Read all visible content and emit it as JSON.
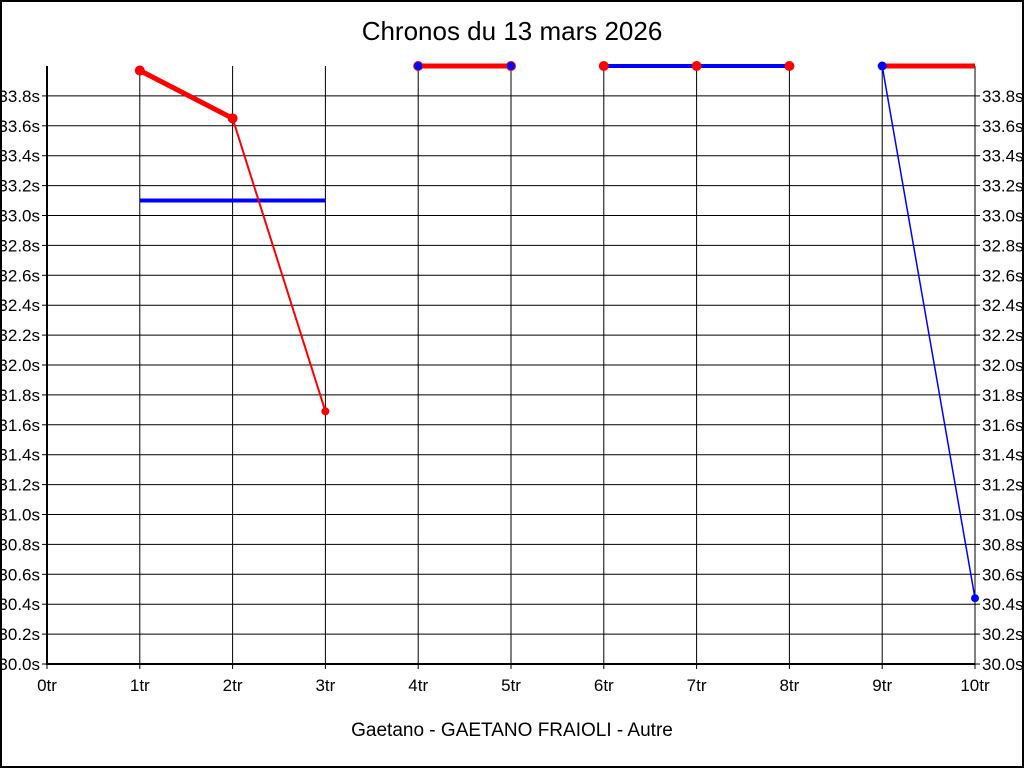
{
  "title": "Chronos du 13 mars 2026",
  "footer": "Gaetano - GAETANO FRAIOLI - Autre",
  "colors": {
    "red": "#ff0000",
    "blue": "#0000ff",
    "grid": "#000000",
    "axis": "#000000",
    "text": "#000000",
    "background": "#ffffff",
    "frame": "#000000"
  },
  "chart_data": {
    "type": "line",
    "title": "Chronos du 13 mars 2026",
    "footer": "Gaetano - GAETANO FRAIOLI - Autre",
    "xlim": [
      0,
      10
    ],
    "ylim": [
      30.0,
      34.0
    ],
    "grid": true,
    "legend": "none",
    "x_tick_values": [
      0,
      1,
      2,
      3,
      4,
      5,
      6,
      7,
      8,
      9,
      10
    ],
    "x_tick_labels": [
      "0tr",
      "1tr",
      "2tr",
      "3tr",
      "4tr",
      "5tr",
      "6tr",
      "7tr",
      "8tr",
      "9tr",
      "10tr"
    ],
    "y_tick_values": [
      33.8,
      33.6,
      33.4,
      33.2,
      33.0,
      32.8,
      32.6,
      32.4,
      32.2,
      32.0,
      31.8,
      31.6,
      31.4,
      31.2,
      31.0,
      30.8,
      30.6,
      30.4,
      30.2,
      30.0
    ],
    "y_tick_labels": [
      "33.8s",
      "33.6s",
      "33.4s",
      "33.2s",
      "33.0s",
      "32.8s",
      "32.6s",
      "32.4s",
      "32.2s",
      "32.0s",
      "31.8s",
      "31.6s",
      "31.4s",
      "31.2s",
      "31.0s",
      "30.8s",
      "30.6s",
      "30.4s",
      "30.2s",
      "30.0s"
    ],
    "y_tick_sides": "both",
    "series": [
      {
        "name": "blue-mean-laps1-3",
        "color": "#0000ff",
        "width": 4,
        "marker_r": 0,
        "points": [
          [
            1,
            33.1
          ],
          [
            3,
            33.1
          ]
        ]
      },
      {
        "name": "red-chrono-lap1-2",
        "color": "#ff0000",
        "width": 5,
        "marker_r": 5,
        "points": [
          [
            1,
            33.97
          ],
          [
            2,
            33.65
          ]
        ]
      },
      {
        "name": "red-chrono-lap2-3",
        "color": "#ff0000",
        "width": 2,
        "marker_r": 4,
        "points": [
          [
            2,
            33.65
          ],
          [
            3,
            31.69
          ]
        ]
      },
      {
        "name": "blue-line-laps4-5",
        "color": "#0000ff",
        "width": 3,
        "marker_r": 0,
        "points": [
          [
            4,
            34.0
          ],
          [
            5,
            34.0
          ]
        ]
      },
      {
        "name": "red-chrono-laps4-5",
        "color": "#ff0000",
        "width": 5,
        "marker_r": 5,
        "points": [
          [
            4,
            34.0
          ],
          [
            5,
            34.0
          ]
        ]
      },
      {
        "name": "blue-markers-laps4-5",
        "color": "#0000ff",
        "width": 0,
        "marker_r": 4,
        "points": [
          [
            4,
            34.0
          ],
          [
            5,
            34.0
          ]
        ]
      },
      {
        "name": "blue-line-laps6-8",
        "color": "#0000ff",
        "width": 4,
        "marker_r": 0,
        "points": [
          [
            6,
            34.0
          ],
          [
            7,
            34.0
          ],
          [
            8,
            34.0
          ]
        ]
      },
      {
        "name": "red-markers-laps6-8",
        "color": "#ff0000",
        "width": 0,
        "marker_r": 5,
        "points": [
          [
            6,
            34.0
          ],
          [
            7,
            34.0
          ],
          [
            8,
            34.0
          ]
        ]
      },
      {
        "name": "blue-desc-lap9-10",
        "color": "#0000ff",
        "width": 1.5,
        "marker_r": 4,
        "points": [
          [
            9,
            34.0
          ],
          [
            10,
            30.44
          ]
        ]
      },
      {
        "name": "red-chrono-laps9-10",
        "color": "#ff0000",
        "width": 5,
        "marker_r": 0,
        "points": [
          [
            9,
            34.0
          ],
          [
            10,
            34.0
          ]
        ]
      },
      {
        "name": "blue-marker-lap9",
        "color": "#0000ff",
        "width": 0,
        "marker_r": 4.5,
        "points": [
          [
            9,
            34.0
          ]
        ]
      }
    ]
  }
}
